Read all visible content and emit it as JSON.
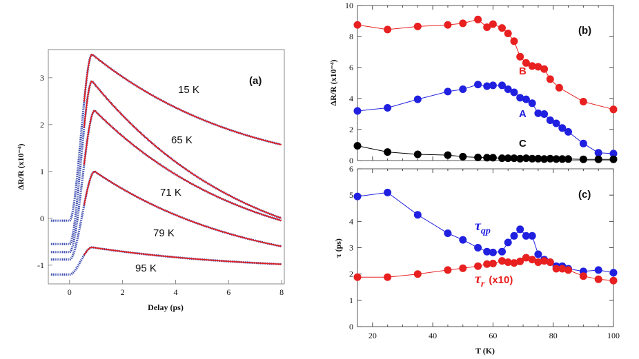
{
  "chart_data": [
    {
      "panel": "(a)",
      "type": "line",
      "xlabel": "Delay (ps)",
      "ylabel": "ΔR/R (x10⁻⁴)",
      "xlim": [
        -0.8,
        8.1
      ],
      "ylim": [
        -1.4,
        3.6
      ],
      "xticks": [
        "0",
        "2",
        "4",
        "6",
        "8"
      ],
      "yticks": [
        "-1",
        "0",
        "1",
        "2",
        "3"
      ],
      "xtick_values": [
        0,
        2,
        4,
        6,
        8
      ],
      "ytick_values": [
        -1,
        0,
        1,
        2,
        3
      ],
      "colors": {
        "data": "#3f4fb0",
        "fit": "#e02020"
      },
      "series": [
        {
          "name": "15 K",
          "label": "15 K",
          "baseline": -0.05,
          "peak": 3.5,
          "tpeak": 0.85,
          "end": 1.57
        },
        {
          "name": "65 K",
          "label": "65 K",
          "baseline": -0.55,
          "peak": 2.93,
          "tpeak": 0.85,
          "end": 0.0
        },
        {
          "name": "71 K",
          "label": "71 K",
          "baseline": -0.72,
          "peak": 2.3,
          "tpeak": 0.95,
          "end": -0.05
        },
        {
          "name": "79 K",
          "label": "79 K",
          "baseline": -0.88,
          "peak": 1.0,
          "tpeak": 0.95,
          "end": -0.6
        },
        {
          "name": "95 K",
          "label": "95 K",
          "baseline": -1.2,
          "peak": -0.62,
          "tpeak": 0.85,
          "end": -0.98
        }
      ]
    },
    {
      "panel": "(b)",
      "type": "line",
      "xlabel": "",
      "ylabel": "ΔR/R (x10⁻⁴)",
      "xlim": [
        15,
        100
      ],
      "ylim": [
        0,
        10
      ],
      "yticks": [
        "0",
        "2",
        "4",
        "6",
        "8",
        "10"
      ],
      "ytick_values": [
        0,
        2,
        4,
        6,
        8,
        10
      ],
      "series": [
        {
          "name": "B",
          "color": "#e82020",
          "x": [
            15,
            25,
            35,
            45,
            50,
            55,
            58,
            60,
            63,
            65,
            67,
            69,
            71,
            73,
            75,
            77,
            79,
            82,
            90,
            100
          ],
          "y": [
            8.75,
            8.45,
            8.65,
            8.75,
            8.85,
            9.1,
            8.6,
            8.8,
            8.55,
            8.2,
            7.7,
            6.7,
            6.3,
            6.1,
            6.05,
            5.9,
            5.25,
            4.7,
            3.8,
            3.3
          ]
        },
        {
          "name": "A",
          "color": "#2020e0",
          "x": [
            15,
            25,
            35,
            45,
            50,
            55,
            58,
            60,
            63,
            65,
            67,
            69,
            71,
            73,
            75,
            77,
            79,
            81,
            83,
            85,
            90,
            95,
            100
          ],
          "y": [
            3.2,
            3.4,
            3.95,
            4.45,
            4.6,
            4.9,
            4.8,
            4.85,
            4.85,
            4.6,
            4.4,
            4.05,
            3.95,
            3.7,
            3.05,
            3.0,
            2.6,
            2.4,
            2.1,
            1.85,
            1.1,
            0.5,
            0.45
          ]
        },
        {
          "name": "C",
          "color": "#000000",
          "x": [
            15,
            25,
            35,
            45,
            50,
            55,
            58,
            60,
            63,
            65,
            67,
            69,
            71,
            73,
            75,
            77,
            79,
            81,
            83,
            85,
            90,
            95,
            100
          ],
          "y": [
            0.95,
            0.55,
            0.4,
            0.35,
            0.25,
            0.2,
            0.18,
            0.18,
            0.15,
            0.15,
            0.15,
            0.12,
            0.15,
            0.12,
            0.12,
            0.1,
            0.12,
            0.1,
            0.1,
            0.1,
            0.08,
            0.08,
            0.08
          ]
        }
      ]
    },
    {
      "panel": "(c)",
      "type": "line",
      "xlabel": "T (K)",
      "ylabel": "τ (ps)",
      "xlim": [
        15,
        100
      ],
      "ylim": [
        0,
        6
      ],
      "xticks": [
        "20",
        "40",
        "60",
        "80",
        "100"
      ],
      "xtick_values": [
        20,
        40,
        60,
        80,
        100
      ],
      "yticks": [
        "0",
        "1",
        "2",
        "3",
        "4",
        "5",
        "6"
      ],
      "ytick_values": [
        0,
        1,
        2,
        3,
        4,
        5,
        6
      ],
      "series": [
        {
          "name": "τqp",
          "color": "#2020e0",
          "x": [
            15,
            25,
            35,
            45,
            50,
            55,
            58,
            60,
            63,
            65,
            67,
            69,
            71,
            73,
            75,
            77,
            79,
            81,
            83,
            85,
            90,
            95,
            100
          ],
          "y": [
            4.95,
            5.1,
            4.25,
            3.55,
            3.3,
            3.0,
            2.85,
            2.82,
            2.85,
            3.2,
            3.45,
            3.7,
            3.45,
            3.45,
            2.75,
            2.55,
            2.45,
            2.3,
            2.3,
            2.2,
            2.1,
            2.15,
            2.05
          ]
        },
        {
          "name": "τr (x10)",
          "color": "#e82020",
          "x": [
            15,
            25,
            35,
            45,
            50,
            55,
            58,
            60,
            63,
            65,
            67,
            69,
            71,
            73,
            75,
            77,
            79,
            81,
            83,
            85,
            90,
            95,
            100
          ],
          "y": [
            1.88,
            1.88,
            2.0,
            2.15,
            2.22,
            2.3,
            2.38,
            2.4,
            2.5,
            2.45,
            2.42,
            2.48,
            2.62,
            2.55,
            2.45,
            2.5,
            2.45,
            2.2,
            2.2,
            2.15,
            1.92,
            1.8,
            1.75
          ]
        }
      ]
    }
  ],
  "labels": {
    "panel_a": "(a)",
    "panel_b": "(b)",
    "panel_c": "(c)",
    "series_B": "B",
    "series_A": "A",
    "series_C": "C",
    "tau_qp_main": "τ",
    "tau_qp_sub": "qp",
    "tau_r_main": "τ",
    "tau_r_sub": "r",
    "tau_r_suffix": "(x10)"
  }
}
